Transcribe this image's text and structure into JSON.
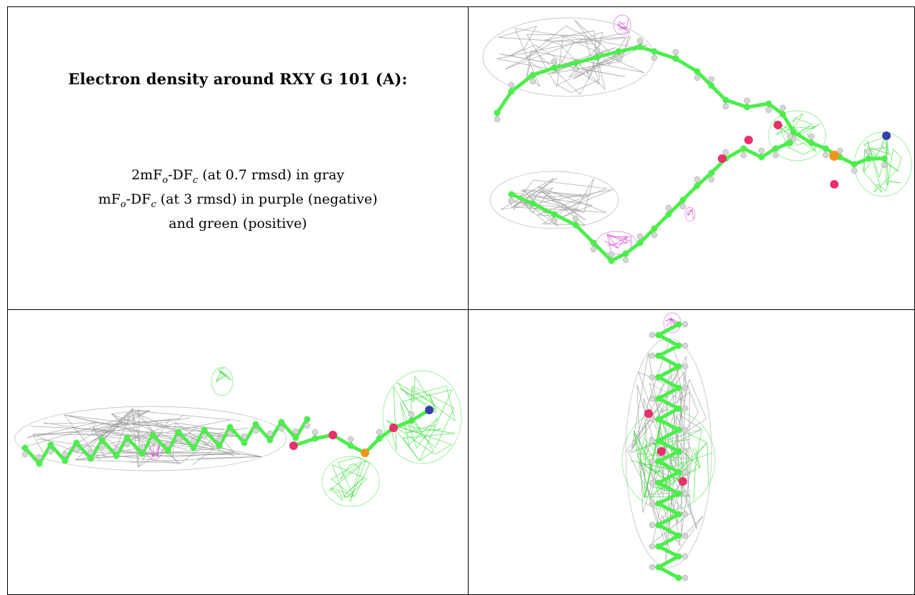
{
  "title": "Electron density around RXY G 101 (A):",
  "legend": {
    "line1": {
      "pre": "2mF",
      "sub1": "o",
      "mid": "-DF",
      "sub2": "c",
      "post": " (at 0.7 rmsd) in gray"
    },
    "line2": {
      "pre": "mF",
      "sub1": "o",
      "mid": "-DF",
      "sub2": "c",
      "post": " (at 3 rmsd) in purple (negative)"
    },
    "line3": "and green (positive)"
  },
  "colors": {
    "carbon": "#4cee4c",
    "hydrogen": "#d6d6d6",
    "oxygen": "#e8306a",
    "phosphorus": "#f0961c",
    "nitrogen": "#3440a8",
    "mesh_2fofc": "#9a9a9a",
    "mesh_positive": "#40e040",
    "mesh_negative": "#d040d0"
  },
  "views": {
    "top_right": {
      "icon": "molecule-curved-view"
    },
    "bottom_left": {
      "icon": "molecule-side-view"
    },
    "bottom_right": {
      "icon": "molecule-end-view"
    }
  }
}
